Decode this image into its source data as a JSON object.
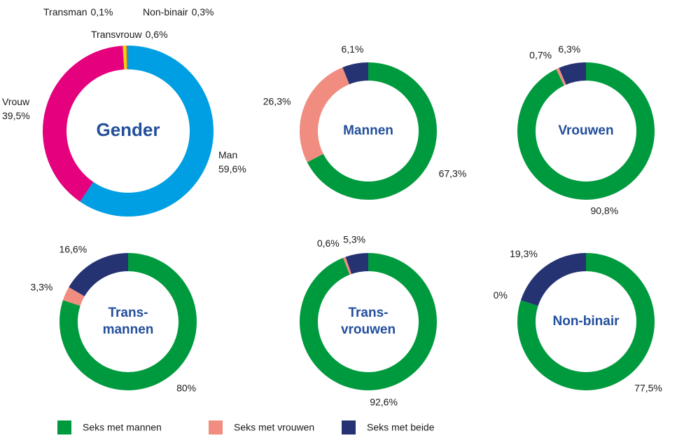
{
  "chart_data": [
    {
      "type": "donut",
      "title": "Gender",
      "categories": [
        "Man",
        "Vrouw",
        "Transvrouw",
        "Transman",
        "Non-binair"
      ],
      "values": [
        59.6,
        39.5,
        0.6,
        0.1,
        0.3
      ],
      "value_labels": [
        "59,6%",
        "39,5%",
        "0,6%",
        "0,1%",
        "0,3%"
      ],
      "colors": [
        "#009fe3",
        "#e5007e",
        "#f5d300",
        "#f39200",
        "#7a7a7a"
      ]
    },
    {
      "type": "donut",
      "title": "Mannen",
      "values": [
        67.3,
        26.3,
        6.1
      ],
      "value_labels": [
        "67,3%",
        "26,3%",
        "6,1%"
      ]
    },
    {
      "type": "donut",
      "title": "Vrouwen",
      "values": [
        90.8,
        0.7,
        6.3
      ],
      "value_labels": [
        "90,8%",
        "0,7%",
        "6,3%"
      ]
    },
    {
      "type": "donut",
      "title": [
        "Trans-",
        "mannen"
      ],
      "values": [
        80,
        3.3,
        16.6
      ],
      "value_labels": [
        "80%",
        "3,3%",
        "16,6%"
      ]
    },
    {
      "type": "donut",
      "title": [
        "Trans-",
        "vrouwen"
      ],
      "values": [
        92.6,
        0.6,
        5.3
      ],
      "value_labels": [
        "92,6%",
        "0,6%",
        "5,3%"
      ]
    },
    {
      "type": "donut",
      "title": "Non-binair",
      "values": [
        77.5,
        0,
        19.3
      ],
      "value_labels": [
        "77,5%",
        "0%",
        "19,3%"
      ]
    }
  ],
  "legend": {
    "items": [
      {
        "name": "Seks met mannen",
        "color": "#009a3e"
      },
      {
        "name": "Seks met vrouwen",
        "color": "#f08c80"
      },
      {
        "name": "Seks met beide",
        "color": "#253372"
      }
    ]
  }
}
